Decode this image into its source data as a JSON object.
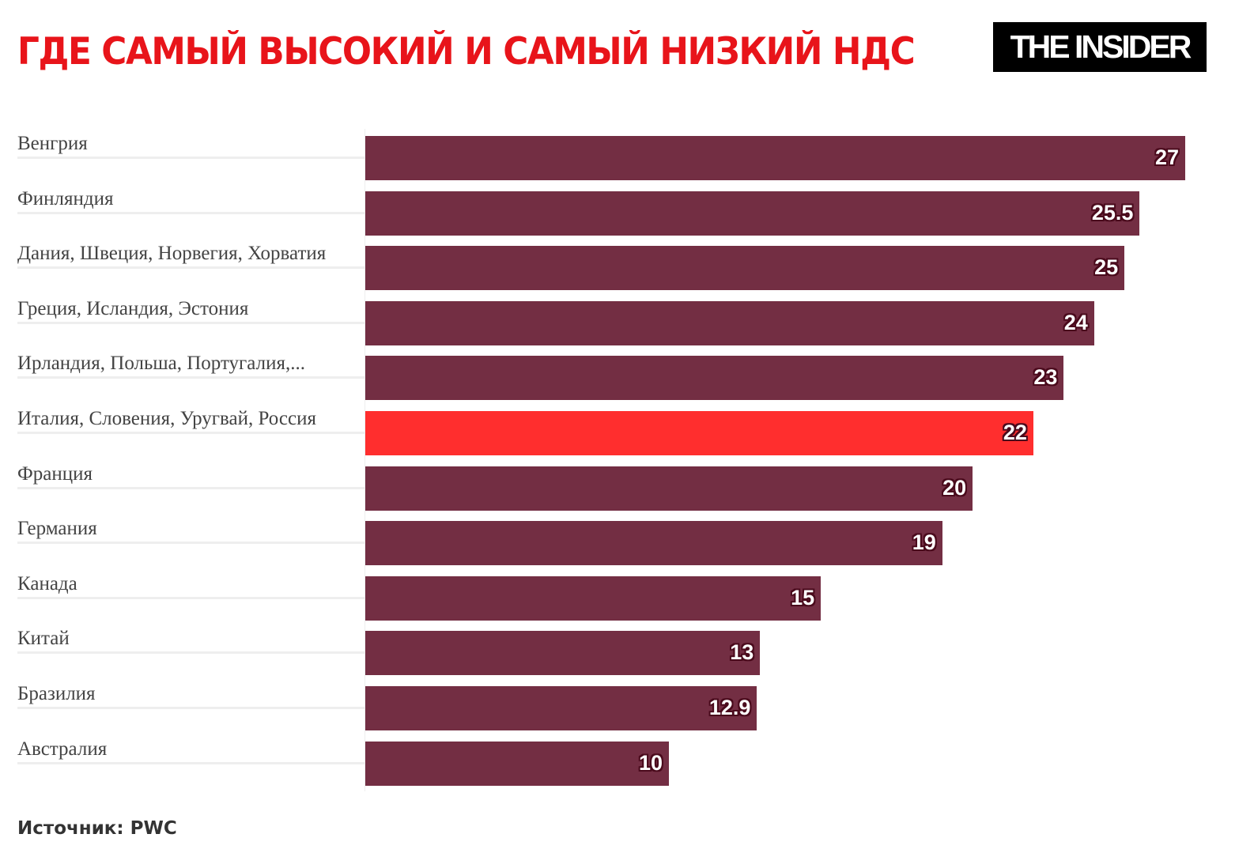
{
  "header": {
    "title": "ГДЕ САМЫЙ ВЫСОКИЙ И САМЫЙ НИЗКИЙ НДС",
    "logo": "THE INSIDER"
  },
  "footer": {
    "source": "Источник: PWC"
  },
  "colors": {
    "bar": "#732e43",
    "highlight": "#ff2e2e",
    "title": "#e8141a"
  },
  "chart_data": {
    "type": "bar",
    "orientation": "horizontal",
    "title": "ГДЕ САМЫЙ ВЫСОКИЙ И САМЫЙ НИЗКИЙ НДС",
    "categories": [
      "Венгрия",
      "Финляндия",
      "Дания, Швеция, Норвегия, Хорватия",
      "Греция, Исландия, Эстония",
      "Ирландия, Польша, Португалия,...",
      "Италия, Словения, Уругвай, Россия",
      "Франция",
      "Германия",
      "Канада",
      "Китай",
      "Бразилия",
      "Австралия"
    ],
    "values": [
      27,
      25.5,
      25,
      24,
      23,
      22,
      20,
      19,
      15,
      13,
      12.9,
      10
    ],
    "labels": [
      "27",
      "25.5",
      "25",
      "24",
      "23",
      "22",
      "20",
      "19",
      "15",
      "13",
      "12.9",
      "10"
    ],
    "highlight_index": 5,
    "xlim": [
      0,
      27
    ],
    "grid": false,
    "data_labels": true
  }
}
